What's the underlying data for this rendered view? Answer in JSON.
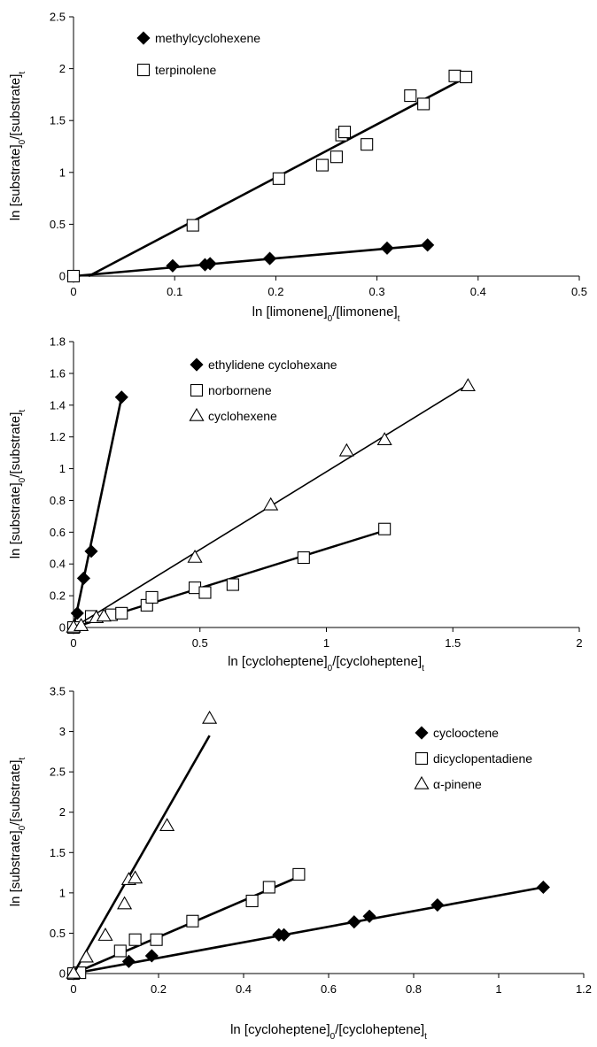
{
  "chart_data": [
    {
      "type": "scatter",
      "title": "",
      "xlabel": {
        "main": "ln [limonene]",
        "sub0": "0",
        "mid": "/[limonene]",
        "sub1": "t"
      },
      "ylabel": {
        "main": "ln [substrate]",
        "sub0": "0",
        "mid": "/[substrate]",
        "sub1": "t"
      },
      "xlim": [
        0,
        0.5
      ],
      "ylim": [
        0,
        2.5
      ],
      "xticks": [
        0,
        0.1,
        0.2,
        0.3,
        0.4,
        0.5
      ],
      "yticks": [
        0,
        0.5,
        1,
        1.5,
        2,
        2.5
      ],
      "xtick_labels": [
        "0",
        "0.1",
        "0.2",
        "0.3",
        "0.4",
        "0.5"
      ],
      "ytick_labels": [
        "0",
        "0.5",
        "1",
        "1.5",
        "2",
        "2.5"
      ],
      "legend_position": "top-left",
      "grid": false,
      "series": [
        {
          "name": "methylcyclohexene",
          "marker": "diamond",
          "points": [
            [
              0,
              0
            ],
            [
              0.098,
              0.1
            ],
            [
              0.13,
              0.11
            ],
            [
              0.135,
              0.12
            ],
            [
              0.194,
              0.17
            ],
            [
              0.31,
              0.27
            ],
            [
              0.35,
              0.3
            ]
          ],
          "fit": [
            [
              0,
              0
            ],
            [
              0.35,
              0.3
            ]
          ]
        },
        {
          "name": "terpinolene",
          "marker": "square",
          "points": [
            [
              0,
              0
            ],
            [
              0.118,
              0.49
            ],
            [
              0.203,
              0.94
            ],
            [
              0.246,
              1.07
            ],
            [
              0.26,
              1.15
            ],
            [
              0.265,
              1.36
            ],
            [
              0.268,
              1.39
            ],
            [
              0.29,
              1.27
            ],
            [
              0.333,
              1.74
            ],
            [
              0.346,
              1.66
            ],
            [
              0.377,
              1.93
            ],
            [
              0.388,
              1.92
            ]
          ],
          "fit": [
            [
              0.015,
              0
            ],
            [
              0.385,
              1.9
            ]
          ]
        }
      ]
    },
    {
      "type": "scatter",
      "title": "",
      "xlabel": {
        "main": "ln [cycloheptene]",
        "sub0": "0",
        "mid": "/[cycloheptene]",
        "sub1": "t"
      },
      "ylabel": {
        "main": "ln [substrate]",
        "sub0": "0",
        "mid": "/[substrate]",
        "sub1": "t"
      },
      "xlim": [
        0,
        2
      ],
      "ylim": [
        0,
        1.8
      ],
      "xticks": [
        0,
        0.5,
        1,
        1.5,
        2
      ],
      "yticks": [
        0,
        0.2,
        0.4,
        0.6,
        0.8,
        1,
        1.2,
        1.4,
        1.6,
        1.8
      ],
      "xtick_labels": [
        "0",
        "0.5",
        "1",
        "1.5",
        "2"
      ],
      "ytick_labels": [
        "0",
        "0.2",
        "0.4",
        "0.6",
        "0.8",
        "1",
        "1.2",
        "1.4",
        "1.6",
        "1.8"
      ],
      "legend_position": "top-center",
      "grid": false,
      "series": [
        {
          "name": "ethylidene cyclohexane",
          "marker": "diamond",
          "points": [
            [
              0,
              0
            ],
            [
              0.015,
              0.09
            ],
            [
              0.04,
              0.31
            ],
            [
              0.07,
              0.48
            ],
            [
              0.19,
              1.45
            ]
          ],
          "fit": [
            [
              0,
              0
            ],
            [
              0.19,
              1.45
            ]
          ]
        },
        {
          "name": "norbornene",
          "marker": "square",
          "points": [
            [
              0,
              0
            ],
            [
              0.07,
              0.07
            ],
            [
              0.15,
              0.08
            ],
            [
              0.19,
              0.09
            ],
            [
              0.29,
              0.14
            ],
            [
              0.31,
              0.19
            ],
            [
              0.48,
              0.25
            ],
            [
              0.52,
              0.22
            ],
            [
              0.63,
              0.27
            ],
            [
              0.91,
              0.44
            ],
            [
              1.23,
              0.62
            ]
          ],
          "fit": [
            [
              0,
              0
            ],
            [
              1.21,
              0.6
            ]
          ]
        },
        {
          "name": "cyclohexene",
          "marker": "triangle",
          "points": [
            [
              0,
              0
            ],
            [
              0.03,
              0.01
            ],
            [
              0.09,
              0.06
            ],
            [
              0.12,
              0.07
            ],
            [
              0.48,
              0.44
            ],
            [
              0.78,
              0.77
            ],
            [
              1.08,
              1.11
            ],
            [
              1.23,
              1.18
            ],
            [
              1.56,
              1.52
            ]
          ],
          "fit": [
            [
              0,
              0
            ],
            [
              1.56,
              1.53
            ]
          ]
        }
      ]
    },
    {
      "type": "scatter",
      "title": "",
      "xlabel": {
        "main": "ln [cycloheptene]",
        "sub0": "0",
        "mid": "/[cycloheptene]",
        "sub1": "t"
      },
      "ylabel": {
        "main": "ln [substrate]",
        "sub0": "0",
        "mid": "/[substrate]",
        "sub1": "t"
      },
      "xlim": [
        0,
        1.2
      ],
      "ylim": [
        0,
        3.5
      ],
      "xticks": [
        0,
        0.2,
        0.4,
        0.6,
        0.8,
        1,
        1.2
      ],
      "yticks": [
        0,
        0.5,
        1,
        1.5,
        2,
        2.5,
        3,
        3.5
      ],
      "xtick_labels": [
        "0",
        "0.2",
        "0.4",
        "0.6",
        "0.8",
        "1",
        "1.2"
      ],
      "ytick_labels": [
        "0",
        "0.5",
        "1",
        "1.5",
        "2",
        "2.5",
        "3",
        "3.5"
      ],
      "legend_position": "top-right",
      "grid": false,
      "series": [
        {
          "name": "cyclooctene",
          "marker": "diamond",
          "points": [
            [
              0,
              0
            ],
            [
              0.13,
              0.15
            ],
            [
              0.184,
              0.22
            ],
            [
              0.483,
              0.48
            ],
            [
              0.495,
              0.48
            ],
            [
              0.66,
              0.64
            ],
            [
              0.696,
              0.71
            ],
            [
              0.856,
              0.85
            ],
            [
              1.105,
              1.07
            ]
          ],
          "fit": [
            [
              0,
              0
            ],
            [
              1.105,
              1.07
            ]
          ]
        },
        {
          "name": "dicyclopentadiene",
          "marker": "square",
          "points": [
            [
              0,
              0
            ],
            [
              0.015,
              0.01
            ],
            [
              0.11,
              0.28
            ],
            [
              0.145,
              0.42
            ],
            [
              0.195,
              0.42
            ],
            [
              0.28,
              0.65
            ],
            [
              0.42,
              0.9
            ],
            [
              0.46,
              1.07
            ],
            [
              0.53,
              1.23
            ]
          ],
          "fit": [
            [
              0,
              0
            ],
            [
              0.53,
              1.2
            ]
          ]
        },
        {
          "name": "α-pinene",
          "marker": "triangle",
          "points": [
            [
              0,
              0
            ],
            [
              0.03,
              0.2
            ],
            [
              0.075,
              0.47
            ],
            [
              0.12,
              0.86
            ],
            [
              0.13,
              1.16
            ],
            [
              0.145,
              1.18
            ],
            [
              0.22,
              1.83
            ],
            [
              0.32,
              3.16
            ]
          ],
          "fit": [
            [
              0,
              0
            ],
            [
              0.32,
              2.95
            ]
          ]
        }
      ]
    }
  ]
}
